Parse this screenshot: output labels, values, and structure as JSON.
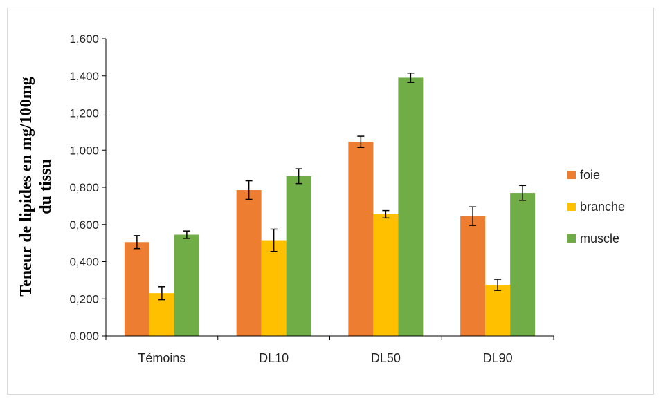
{
  "chart_data": {
    "type": "bar",
    "title": "",
    "xlabel": "",
    "ylabel_lines": [
      "Teneur de lipides en mg/100mg",
      "du tissu"
    ],
    "categories": [
      "Témoins",
      "DL10",
      "DL50",
      "DL90"
    ],
    "ylim": [
      0,
      1.6
    ],
    "yticks": [
      {
        "value": 0.0,
        "label": "0,000"
      },
      {
        "value": 0.2,
        "label": "0,200"
      },
      {
        "value": 0.4,
        "label": "0,400"
      },
      {
        "value": 0.6,
        "label": "0,600"
      },
      {
        "value": 0.8,
        "label": "0,800"
      },
      {
        "value": 1.0,
        "label": "1,000"
      },
      {
        "value": 1.2,
        "label": "1,200"
      },
      {
        "value": 1.4,
        "label": "1,400"
      },
      {
        "value": 1.6,
        "label": "1,600"
      }
    ],
    "grid": false,
    "legend_position": "right",
    "series": [
      {
        "name": "foie",
        "color": "#ED7D31",
        "values": [
          0.505,
          0.785,
          1.045,
          0.645
        ],
        "errors": [
          0.035,
          0.05,
          0.03,
          0.05
        ]
      },
      {
        "name": "branche",
        "color": "#FFC000",
        "values": [
          0.23,
          0.515,
          0.655,
          0.275
        ],
        "errors": [
          0.035,
          0.06,
          0.02,
          0.03
        ]
      },
      {
        "name": "muscle",
        "color": "#70AD47",
        "values": [
          0.545,
          0.86,
          1.39,
          0.77
        ],
        "errors": [
          0.02,
          0.04,
          0.025,
          0.04
        ]
      }
    ]
  }
}
